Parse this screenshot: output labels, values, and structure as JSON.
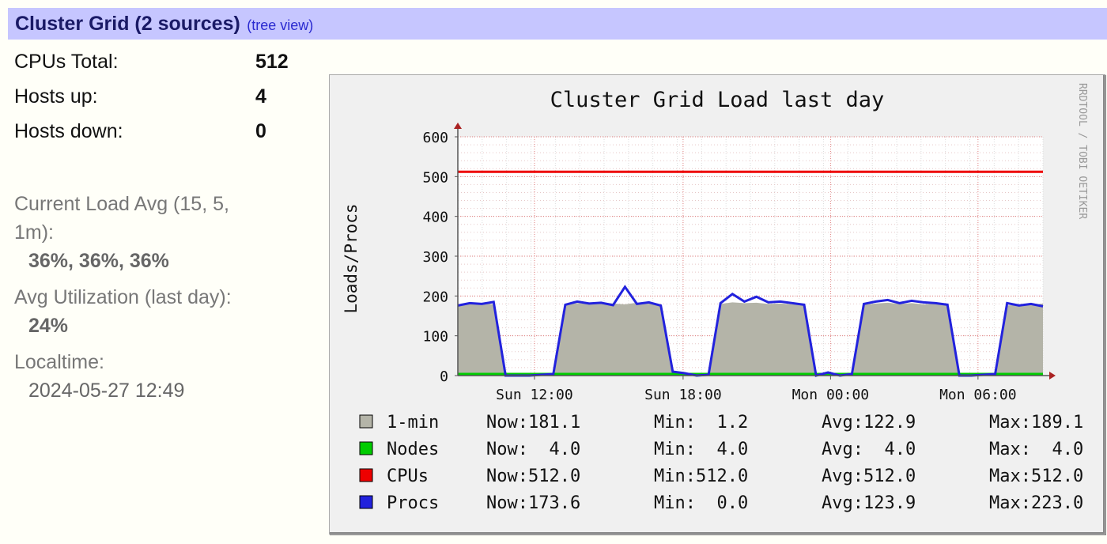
{
  "header": {
    "title": "Cluster Grid (2 sources)",
    "link": "(tree view)"
  },
  "stats": [
    {
      "label": "CPUs Total:",
      "value": "512"
    },
    {
      "label": "Hosts up:",
      "value": "4"
    },
    {
      "label": "Hosts down:",
      "value": "0"
    }
  ],
  "info": {
    "load_label_1": "Current Load Avg (15, 5,",
    "load_label_2": "1m):",
    "load_value": "36%, 36%, 36%",
    "util_label": "Avg Utilization (last day):",
    "util_value": "24%",
    "localtime_label": "Localtime:",
    "localtime_value": "2024-05-27 12:49"
  },
  "chart_data": {
    "type": "area",
    "title": "Cluster Grid Load last day",
    "ylabel": "Loads/Procs",
    "watermark": "RRDTOOL / TOBI OETIKER",
    "ylim": [
      0,
      600
    ],
    "yticks": [
      0,
      100,
      200,
      300,
      400,
      500,
      600
    ],
    "xticks": [
      "Sun 12:00",
      "Sun 18:00",
      "Mon 00:00",
      "Mon 06:00"
    ],
    "x_hours_labels": [
      "Sun 12:00",
      "Sun 18:00",
      "Mon 00:00",
      "Mon 06:00"
    ],
    "grid": true,
    "series": [
      {
        "name": "1-min",
        "color": "#b4b4a8",
        "kind": "area",
        "values": [
          178,
          180,
          182,
          179,
          2,
          1,
          1,
          1,
          2,
          178,
          182,
          180,
          184,
          181,
          179,
          183,
          181,
          178,
          2,
          1,
          1,
          1,
          180,
          184,
          182,
          183,
          180,
          181,
          179,
          178,
          2,
          1,
          1,
          1,
          178,
          181,
          183,
          180,
          182,
          179,
          181,
          176,
          2,
          1,
          1,
          1,
          176,
          178,
          177,
          181
        ]
      },
      {
        "name": "Nodes",
        "color": "#00cc00",
        "kind": "line",
        "values": [
          4,
          4,
          4,
          4,
          4,
          4,
          4,
          4,
          4,
          4,
          4,
          4,
          4,
          4,
          4,
          4,
          4,
          4,
          4,
          4,
          4,
          4,
          4,
          4,
          4,
          4,
          4,
          4,
          4,
          4,
          4,
          4,
          4,
          4,
          4,
          4,
          4,
          4,
          4,
          4,
          4,
          4,
          4,
          4,
          4,
          4,
          4,
          4,
          4,
          4
        ]
      },
      {
        "name": "CPUs",
        "color": "#ee0000",
        "kind": "line",
        "values": [
          512,
          512,
          512,
          512,
          512,
          512,
          512,
          512,
          512,
          512,
          512,
          512,
          512,
          512,
          512,
          512,
          512,
          512,
          512,
          512,
          512,
          512,
          512,
          512,
          512,
          512,
          512,
          512,
          512,
          512,
          512,
          512,
          512,
          512,
          512,
          512,
          512,
          512,
          512,
          512,
          512,
          512,
          512,
          512,
          512,
          512,
          512,
          512,
          512,
          512
        ]
      },
      {
        "name": "Procs",
        "color": "#2222dd",
        "kind": "line",
        "values": [
          176,
          182,
          180,
          185,
          0,
          0,
          0,
          2,
          4,
          178,
          186,
          181,
          183,
          177,
          223,
          180,
          184,
          176,
          10,
          6,
          0,
          2,
          182,
          205,
          186,
          198,
          184,
          186,
          182,
          178,
          0,
          8,
          0,
          4,
          180,
          186,
          190,
          182,
          188,
          184,
          182,
          178,
          0,
          0,
          2,
          4,
          182,
          176,
          180,
          174
        ]
      }
    ],
    "legend": [
      {
        "name": "1-min",
        "color": "#b4b4a8",
        "now": "Now:181.1",
        "min": "Min:  1.2",
        "avg": "Avg:122.9",
        "max": "Max:189.1"
      },
      {
        "name": "Nodes",
        "color": "#00cc00",
        "now": "Now:  4.0",
        "min": "Min:  4.0",
        "avg": "Avg:  4.0",
        "max": "Max:  4.0"
      },
      {
        "name": "CPUs",
        "color": "#ee0000",
        "now": "Now:512.0",
        "min": "Min:512.0",
        "avg": "Avg:512.0",
        "max": "Max:512.0"
      },
      {
        "name": "Procs",
        "color": "#2222dd",
        "now": "Now:173.6",
        "min": "Min:  0.0",
        "avg": "Avg:123.9",
        "max": "Max:223.0"
      }
    ]
  }
}
